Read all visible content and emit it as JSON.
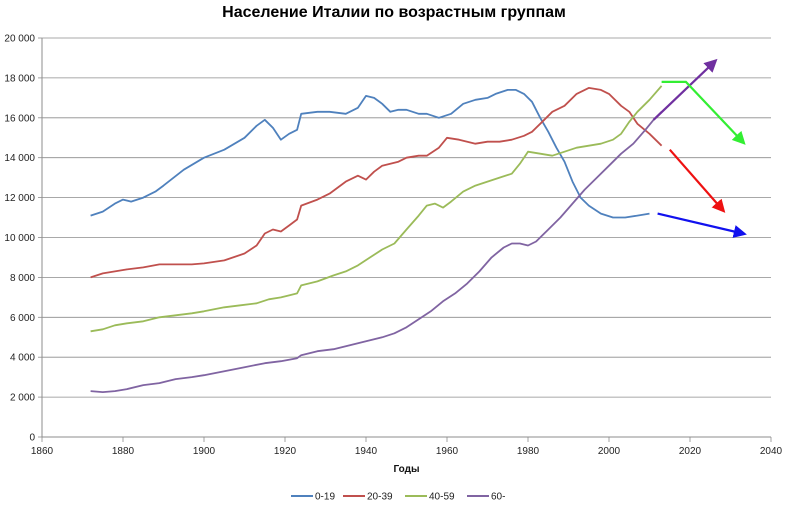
{
  "chart_data": {
    "type": "line",
    "title": "Население Италии по возрастным группам",
    "xlabel": "Годы",
    "ylabel": "",
    "xlim": [
      1860,
      2040
    ],
    "ylim": [
      0,
      20000
    ],
    "x_ticks": [
      1860,
      1880,
      1900,
      1920,
      1940,
      1960,
      1980,
      2000,
      2020,
      2040
    ],
    "y_ticks": [
      0,
      2000,
      4000,
      6000,
      8000,
      10000,
      12000,
      14000,
      16000,
      18000,
      20000
    ],
    "x_tick_labels": [
      "1860",
      "1880",
      "1900",
      "1920",
      "1940",
      "1960",
      "1980",
      "2000",
      "2020",
      "2040"
    ],
    "y_tick_labels": [
      "0",
      "2 000",
      "4 000",
      "6 000",
      "8 000",
      "10 000",
      "12 000",
      "14 000",
      "16 000",
      "18 000",
      "20 000"
    ],
    "grid": "horizontal",
    "legend_position": "bottom",
    "series": [
      {
        "name": "0-19",
        "color": "#4f81bd",
        "points": [
          [
            1872,
            11100
          ],
          [
            1875,
            11300
          ],
          [
            1878,
            11700
          ],
          [
            1880,
            11900
          ],
          [
            1882,
            11800
          ],
          [
            1885,
            12000
          ],
          [
            1888,
            12300
          ],
          [
            1890,
            12600
          ],
          [
            1895,
            13400
          ],
          [
            1900,
            14000
          ],
          [
            1905,
            14400
          ],
          [
            1910,
            15000
          ],
          [
            1913,
            15600
          ],
          [
            1915,
            15900
          ],
          [
            1917,
            15500
          ],
          [
            1919,
            14900
          ],
          [
            1921,
            15200
          ],
          [
            1923,
            15400
          ],
          [
            1924,
            16200
          ],
          [
            1928,
            16300
          ],
          [
            1931,
            16300
          ],
          [
            1935,
            16200
          ],
          [
            1938,
            16500
          ],
          [
            1940,
            17100
          ],
          [
            1942,
            17000
          ],
          [
            1944,
            16700
          ],
          [
            1946,
            16300
          ],
          [
            1948,
            16400
          ],
          [
            1950,
            16400
          ],
          [
            1953,
            16200
          ],
          [
            1955,
            16200
          ],
          [
            1958,
            16000
          ],
          [
            1961,
            16200
          ],
          [
            1964,
            16700
          ],
          [
            1967,
            16900
          ],
          [
            1970,
            17000
          ],
          [
            1972,
            17200
          ],
          [
            1975,
            17400
          ],
          [
            1977,
            17400
          ],
          [
            1979,
            17200
          ],
          [
            1981,
            16800
          ],
          [
            1983,
            16000
          ],
          [
            1985,
            15300
          ],
          [
            1987,
            14500
          ],
          [
            1989,
            13800
          ],
          [
            1991,
            12800
          ],
          [
            1993,
            12000
          ],
          [
            1995,
            11600
          ],
          [
            1998,
            11200
          ],
          [
            2001,
            11000
          ],
          [
            2004,
            11000
          ],
          [
            2007,
            11100
          ],
          [
            2010,
            11200
          ]
        ]
      },
      {
        "name": "20-39",
        "color": "#c0504d",
        "points": [
          [
            1872,
            8000
          ],
          [
            1875,
            8200
          ],
          [
            1878,
            8300
          ],
          [
            1881,
            8400
          ],
          [
            1885,
            8500
          ],
          [
            1889,
            8650
          ],
          [
            1893,
            8650
          ],
          [
            1897,
            8650
          ],
          [
            1900,
            8700
          ],
          [
            1905,
            8850
          ],
          [
            1910,
            9200
          ],
          [
            1913,
            9600
          ],
          [
            1915,
            10200
          ],
          [
            1917,
            10400
          ],
          [
            1919,
            10300
          ],
          [
            1921,
            10600
          ],
          [
            1923,
            10900
          ],
          [
            1924,
            11600
          ],
          [
            1928,
            11900
          ],
          [
            1931,
            12200
          ],
          [
            1935,
            12800
          ],
          [
            1938,
            13100
          ],
          [
            1940,
            12900
          ],
          [
            1942,
            13300
          ],
          [
            1944,
            13600
          ],
          [
            1946,
            13700
          ],
          [
            1948,
            13800
          ],
          [
            1950,
            14000
          ],
          [
            1953,
            14100
          ],
          [
            1955,
            14100
          ],
          [
            1958,
            14500
          ],
          [
            1960,
            15000
          ],
          [
            1963,
            14900
          ],
          [
            1967,
            14700
          ],
          [
            1970,
            14800
          ],
          [
            1973,
            14800
          ],
          [
            1976,
            14900
          ],
          [
            1979,
            15100
          ],
          [
            1981,
            15300
          ],
          [
            1983,
            15700
          ],
          [
            1986,
            16300
          ],
          [
            1989,
            16600
          ],
          [
            1992,
            17200
          ],
          [
            1995,
            17500
          ],
          [
            1998,
            17400
          ],
          [
            2000,
            17200
          ],
          [
            2003,
            16600
          ],
          [
            2005,
            16300
          ],
          [
            2007,
            15700
          ],
          [
            2010,
            15200
          ],
          [
            2013,
            14600
          ]
        ]
      },
      {
        "name": "40-59",
        "color": "#9bbb59",
        "points": [
          [
            1872,
            5300
          ],
          [
            1875,
            5400
          ],
          [
            1878,
            5600
          ],
          [
            1881,
            5700
          ],
          [
            1885,
            5800
          ],
          [
            1889,
            6000
          ],
          [
            1893,
            6100
          ],
          [
            1897,
            6200
          ],
          [
            1900,
            6300
          ],
          [
            1905,
            6500
          ],
          [
            1909,
            6600
          ],
          [
            1913,
            6700
          ],
          [
            1916,
            6900
          ],
          [
            1919,
            7000
          ],
          [
            1921,
            7100
          ],
          [
            1923,
            7200
          ],
          [
            1924,
            7600
          ],
          [
            1928,
            7800
          ],
          [
            1932,
            8100
          ],
          [
            1935,
            8300
          ],
          [
            1938,
            8600
          ],
          [
            1941,
            9000
          ],
          [
            1944,
            9400
          ],
          [
            1947,
            9700
          ],
          [
            1950,
            10400
          ],
          [
            1953,
            11100
          ],
          [
            1955,
            11600
          ],
          [
            1957,
            11700
          ],
          [
            1959,
            11500
          ],
          [
            1961,
            11800
          ],
          [
            1964,
            12300
          ],
          [
            1967,
            12600
          ],
          [
            1970,
            12800
          ],
          [
            1973,
            13000
          ],
          [
            1976,
            13200
          ],
          [
            1978,
            13700
          ],
          [
            1980,
            14300
          ],
          [
            1983,
            14200
          ],
          [
            1986,
            14100
          ],
          [
            1989,
            14300
          ],
          [
            1992,
            14500
          ],
          [
            1995,
            14600
          ],
          [
            1998,
            14700
          ],
          [
            2001,
            14900
          ],
          [
            2003,
            15200
          ],
          [
            2005,
            15800
          ],
          [
            2007,
            16300
          ],
          [
            2010,
            16900
          ],
          [
            2013,
            17600
          ]
        ]
      },
      {
        "name": "60-",
        "color": "#8064a2",
        "points": [
          [
            1872,
            2300
          ],
          [
            1875,
            2250
          ],
          [
            1878,
            2300
          ],
          [
            1881,
            2400
          ],
          [
            1885,
            2600
          ],
          [
            1889,
            2700
          ],
          [
            1893,
            2900
          ],
          [
            1897,
            3000
          ],
          [
            1900,
            3100
          ],
          [
            1905,
            3300
          ],
          [
            1910,
            3500
          ],
          [
            1915,
            3700
          ],
          [
            1919,
            3800
          ],
          [
            1923,
            3950
          ],
          [
            1924,
            4100
          ],
          [
            1928,
            4300
          ],
          [
            1932,
            4400
          ],
          [
            1936,
            4600
          ],
          [
            1940,
            4800
          ],
          [
            1944,
            5000
          ],
          [
            1947,
            5200
          ],
          [
            1950,
            5500
          ],
          [
            1953,
            5900
          ],
          [
            1956,
            6300
          ],
          [
            1959,
            6800
          ],
          [
            1962,
            7200
          ],
          [
            1965,
            7700
          ],
          [
            1968,
            8300
          ],
          [
            1971,
            9000
          ],
          [
            1974,
            9500
          ],
          [
            1976,
            9700
          ],
          [
            1978,
            9700
          ],
          [
            1980,
            9600
          ],
          [
            1982,
            9800
          ],
          [
            1985,
            10400
          ],
          [
            1988,
            11000
          ],
          [
            1991,
            11700
          ],
          [
            1994,
            12400
          ],
          [
            1997,
            13000
          ],
          [
            2000,
            13600
          ],
          [
            2003,
            14200
          ],
          [
            2006,
            14700
          ],
          [
            2009,
            15400
          ],
          [
            2011,
            15900
          ],
          [
            2013,
            16300
          ]
        ]
      }
    ],
    "annotations": [
      {
        "name": "arrow-60-up",
        "color": "#7030a0",
        "points": [
          [
            2011,
            15900
          ],
          [
            2026,
            18800
          ]
        ]
      },
      {
        "name": "arrow-40-59-down",
        "color": "#33ee33",
        "points": [
          [
            2013,
            17800
          ],
          [
            2019,
            17800
          ],
          [
            2033,
            14800
          ]
        ]
      },
      {
        "name": "arrow-20-39-down",
        "color": "#ee1111",
        "points": [
          [
            2015,
            14400
          ],
          [
            2028,
            11400
          ]
        ]
      },
      {
        "name": "arrow-0-19-flat",
        "color": "#1111ee",
        "points": [
          [
            2012,
            11200
          ],
          [
            2033,
            10200
          ]
        ]
      }
    ]
  }
}
